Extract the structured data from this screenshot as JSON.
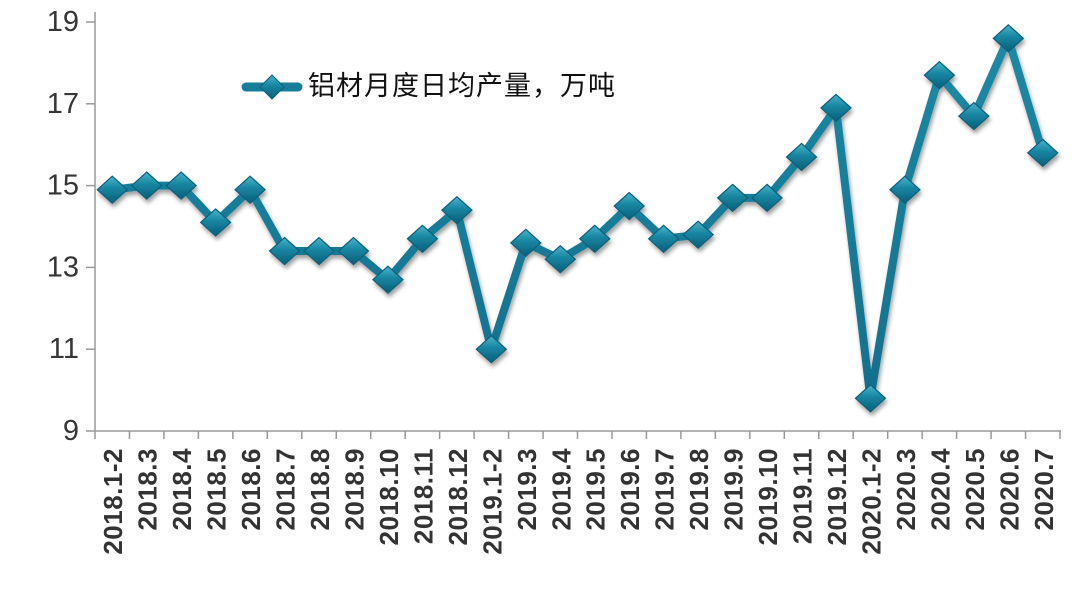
{
  "chart_data": {
    "type": "line",
    "title": "",
    "legend": "铝材月度日均产量，万吨",
    "legend_position": "top-inside-left",
    "marker": "diamond",
    "grid": false,
    "categories": [
      "2018.1-2",
      "2018.3",
      "2018.4",
      "2018.5",
      "2018.6",
      "2018.7",
      "2018.8",
      "2018.9",
      "2018.10",
      "2018.11",
      "2018.12",
      "2019.1-2",
      "2019.3",
      "2019.4",
      "2019.5",
      "2019.6",
      "2019.7",
      "2019.8",
      "2019.9",
      "2019.10",
      "2019.11",
      "2019.12",
      "2020.1-2",
      "2020.3",
      "2020.4",
      "2020.5",
      "2020.6",
      "2020.7"
    ],
    "series": [
      {
        "name": "铝材月度日均产量，万吨",
        "values": [
          14.9,
          15.0,
          15.0,
          14.1,
          14.9,
          13.4,
          13.4,
          13.4,
          12.7,
          13.7,
          14.4,
          11.0,
          13.6,
          13.2,
          13.7,
          14.5,
          13.7,
          13.8,
          14.7,
          14.7,
          15.7,
          16.9,
          9.8,
          14.9,
          17.7,
          16.7,
          18.6,
          15.8
        ]
      }
    ],
    "xlabel": "",
    "ylabel": "",
    "ylim": [
      9,
      19
    ],
    "yticks": [
      9,
      11,
      13,
      15,
      17,
      19
    ],
    "colors": {
      "line": "#147e9b",
      "marker_light": "#45b1c6",
      "marker_mid": "#1685a1",
      "marker_dark": "#0b5f79",
      "axis": "#999999",
      "tick_label": "#363636"
    }
  }
}
